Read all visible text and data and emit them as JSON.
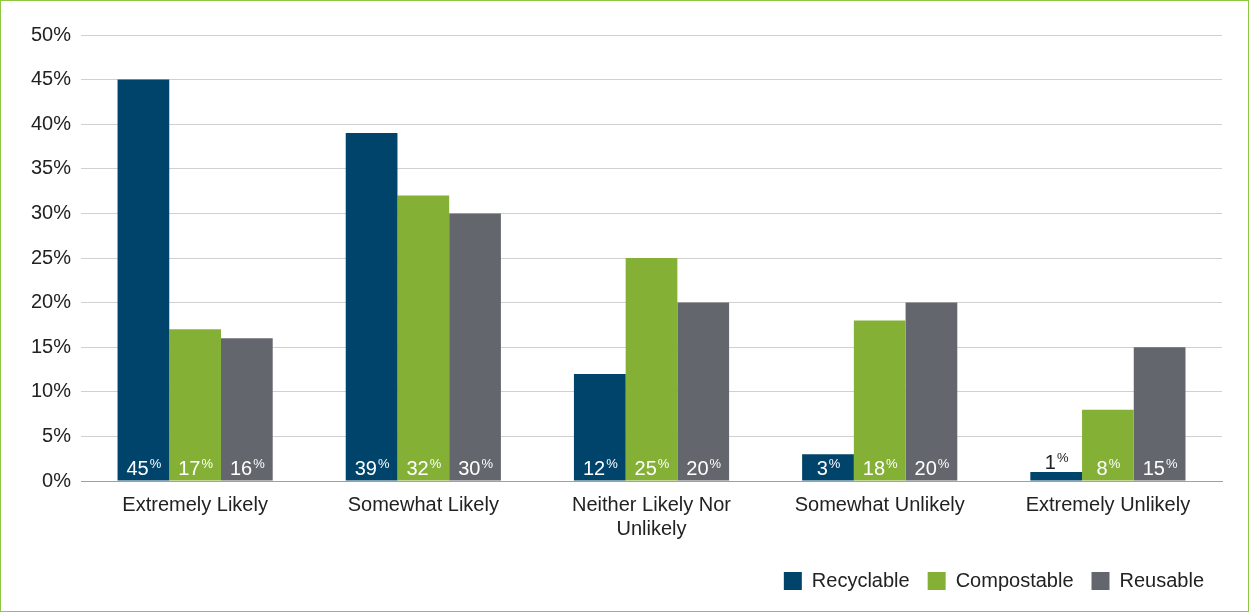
{
  "chart_data": {
    "type": "bar",
    "categories": [
      "Extremely Likely",
      "Somewhat Likely",
      "Neither Likely Nor Unlikely",
      "Somewhat Unlikely",
      "Extremely Unlikely"
    ],
    "series": [
      {
        "name": "Recyclable",
        "color": "#00446b",
        "values": [
          45,
          39,
          12,
          3,
          1
        ],
        "value_labels": [
          "45%",
          "39%",
          "12%",
          "3%",
          "1%"
        ]
      },
      {
        "name": "Compostable",
        "color": "#84b135",
        "values": [
          17,
          32,
          25,
          18,
          8
        ],
        "value_labels": [
          "17%",
          "32%",
          "25%",
          "18%",
          "8%"
        ]
      },
      {
        "name": "Reusable",
        "color": "#63666d",
        "values": [
          16,
          30,
          20,
          20,
          15
        ],
        "value_labels": [
          "16%",
          "30%",
          "20%",
          "20%",
          "15%"
        ]
      }
    ],
    "ylim": [
      0,
      50
    ],
    "yticks": [
      {
        "value": 0,
        "label": "0%"
      },
      {
        "value": 5,
        "label": "5%"
      },
      {
        "value": 10,
        "label": "10%"
      },
      {
        "value": 15,
        "label": "15%"
      },
      {
        "value": 20,
        "label": "20%"
      },
      {
        "value": 25,
        "label": "25%"
      },
      {
        "value": 30,
        "label": "30%"
      },
      {
        "value": 35,
        "label": "35%"
      },
      {
        "value": 40,
        "label": "40%"
      },
      {
        "value": 45,
        "label": "45%"
      },
      {
        "value": 50,
        "label": "50%"
      }
    ],
    "grid": "y",
    "legend": "bottom right"
  }
}
